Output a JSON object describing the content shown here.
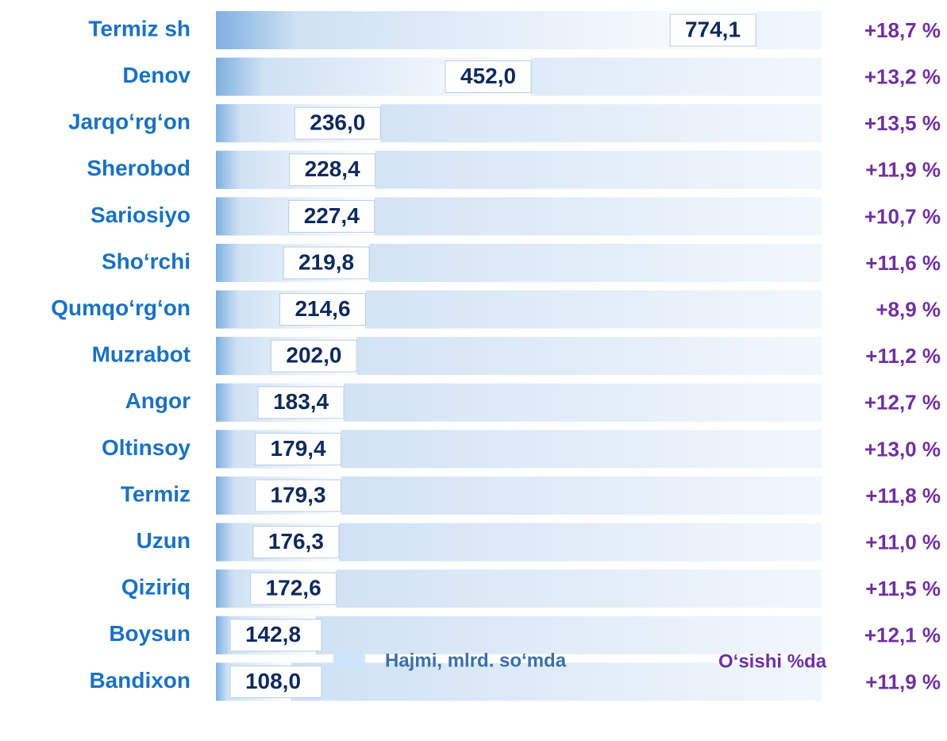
{
  "chart_data": {
    "type": "bar",
    "orientation": "horizontal",
    "categories": [
      "Termiz sh",
      "Denov",
      "Jarqo‘rg‘on",
      "Sherobod",
      "Sariosiyo",
      "Sho‘rchi",
      "Qumqo‘rg‘on",
      "Muzrabot",
      "Angor",
      "Oltinsoy",
      "Termiz",
      "Uzun",
      "Qiziriq",
      "Boysun",
      "Bandixon"
    ],
    "series": [
      {
        "name": "Hajmi, mlrd. so‘mda",
        "color": "#7fb0e0",
        "values": [
          774.1,
          452.0,
          236.0,
          228.4,
          227.4,
          219.8,
          214.6,
          202.0,
          183.4,
          179.4,
          179.3,
          176.3,
          172.6,
          142.8,
          108.0
        ],
        "value_labels": [
          "774,1",
          "452,0",
          "236,0",
          "228,4",
          "227,4",
          "219,8",
          "214,6",
          "202,0",
          "183,4",
          "179,4",
          "179,3",
          "176,3",
          "172,6",
          "142,8",
          "108,0"
        ]
      },
      {
        "name": "O‘sishi %da",
        "color": "#7030a0",
        "values": [
          18.7,
          13.2,
          13.5,
          11.9,
          10.7,
          11.6,
          8.9,
          11.2,
          12.7,
          13.0,
          11.8,
          11.0,
          11.5,
          12.1,
          11.9
        ],
        "value_labels": [
          "+18,7 %",
          "+13,2 %",
          "+13,5 %",
          "+11,9 %",
          "+10,7 %",
          "+11,6 %",
          "+8,9 %",
          "+11,2 %",
          "+12,7 %",
          "+13,0 %",
          "+11,8 %",
          "+11,0 %",
          "+11,5 %",
          "+12,1 %",
          "+11,9 %"
        ]
      }
    ]
  }
}
